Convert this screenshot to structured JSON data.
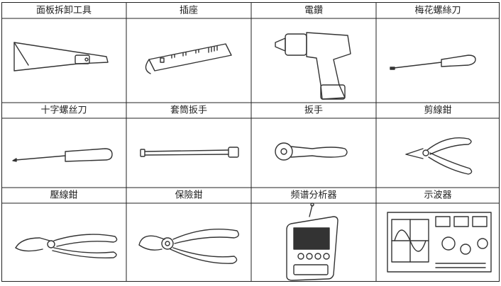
{
  "table": {
    "rows": [
      [
        "面板拆卸工具",
        "插座",
        "電鑽",
        "梅花螺絲刀"
      ],
      [
        "十字螺丝刀",
        "套筒扳手",
        "扳手",
        "剪線鉗"
      ],
      [
        "壓線鉗",
        "保險鉗",
        "频谱分析器",
        "示波器"
      ]
    ]
  }
}
